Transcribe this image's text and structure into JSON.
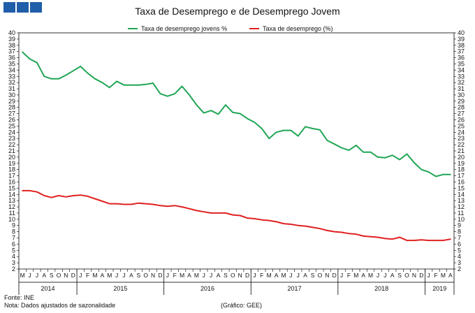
{
  "chart_data": {
    "type": "line",
    "title": "Taxa de Desemprego e de Desemprego Jovem",
    "ylim": [
      2,
      40
    ],
    "yticks": [
      2,
      3,
      4,
      5,
      6,
      7,
      8,
      9,
      10,
      11,
      12,
      13,
      14,
      15,
      16,
      17,
      18,
      19,
      20,
      21,
      22,
      23,
      24,
      25,
      26,
      27,
      28,
      29,
      30,
      31,
      32,
      33,
      34,
      35,
      36,
      37,
      38,
      39,
      40
    ],
    "month_labels": [
      "M",
      "J",
      "J",
      "A",
      "S",
      "O",
      "N",
      "D",
      "J",
      "F",
      "M",
      "A",
      "M",
      "J",
      "J",
      "A",
      "S",
      "O",
      "N",
      "D",
      "J",
      "F",
      "M",
      "A",
      "M",
      "J",
      "J",
      "A",
      "S",
      "O",
      "N",
      "D",
      "J",
      "F",
      "M",
      "A",
      "M",
      "J",
      "J",
      "A",
      "S",
      "O",
      "N",
      "D",
      "J",
      "F",
      "M",
      "A",
      "M",
      "J",
      "J",
      "A",
      "S",
      "O",
      "N",
      "D",
      "J",
      "F",
      "M",
      "A"
    ],
    "years": [
      {
        "label": "2014",
        "start": 0,
        "end": 8
      },
      {
        "label": "2015",
        "start": 8,
        "end": 20
      },
      {
        "label": "2016",
        "start": 20,
        "end": 32
      },
      {
        "label": "2017",
        "start": 32,
        "end": 44
      },
      {
        "label": "2018",
        "start": 44,
        "end": 56
      },
      {
        "label": "2019",
        "start": 56,
        "end": 60
      }
    ],
    "series": [
      {
        "name": "Taxa de desemprego jovens %",
        "color": "#1fa655",
        "values": [
          36.9,
          35.8,
          35.2,
          33.0,
          32.6,
          32.6,
          33.2,
          33.9,
          34.6,
          33.5,
          32.6,
          32.0,
          31.2,
          32.2,
          31.6,
          31.6,
          31.6,
          31.7,
          31.9,
          30.2,
          29.8,
          30.2,
          31.4,
          30.0,
          28.4,
          27.1,
          27.5,
          26.9,
          28.4,
          27.2,
          27.0,
          26.2,
          25.6,
          24.6,
          23.0,
          24.0,
          24.3,
          24.3,
          23.4,
          24.9,
          24.6,
          24.4,
          22.7,
          22.1,
          21.5,
          21.1,
          21.9,
          20.8,
          20.8,
          20.0,
          19.9,
          20.3,
          19.6,
          20.5,
          19.1,
          18.0,
          17.6,
          16.9,
          17.2,
          17.2
        ]
      },
      {
        "name": "Taxa de desemprego (%)",
        "color": "#e02020",
        "values": [
          14.6,
          14.6,
          14.4,
          13.8,
          13.5,
          13.8,
          13.6,
          13.8,
          13.9,
          13.7,
          13.3,
          12.9,
          12.5,
          12.5,
          12.4,
          12.4,
          12.6,
          12.5,
          12.4,
          12.2,
          12.1,
          12.2,
          12.0,
          11.7,
          11.4,
          11.2,
          11.0,
          11.0,
          11.0,
          10.7,
          10.6,
          10.2,
          10.1,
          9.9,
          9.8,
          9.6,
          9.3,
          9.2,
          9.0,
          8.9,
          8.7,
          8.5,
          8.2,
          8.0,
          7.9,
          7.7,
          7.6,
          7.3,
          7.2,
          7.1,
          6.9,
          6.8,
          7.1,
          6.6,
          6.6,
          6.7,
          6.6,
          6.6,
          6.6,
          6.8
        ]
      }
    ]
  },
  "footer": {
    "source": "Fonte: INE",
    "note": "Nota: Dados ajustados de sazonalidade",
    "credit": "(Gráfico: GEE)"
  },
  "logo": {
    "color": "#1f5ea8"
  }
}
